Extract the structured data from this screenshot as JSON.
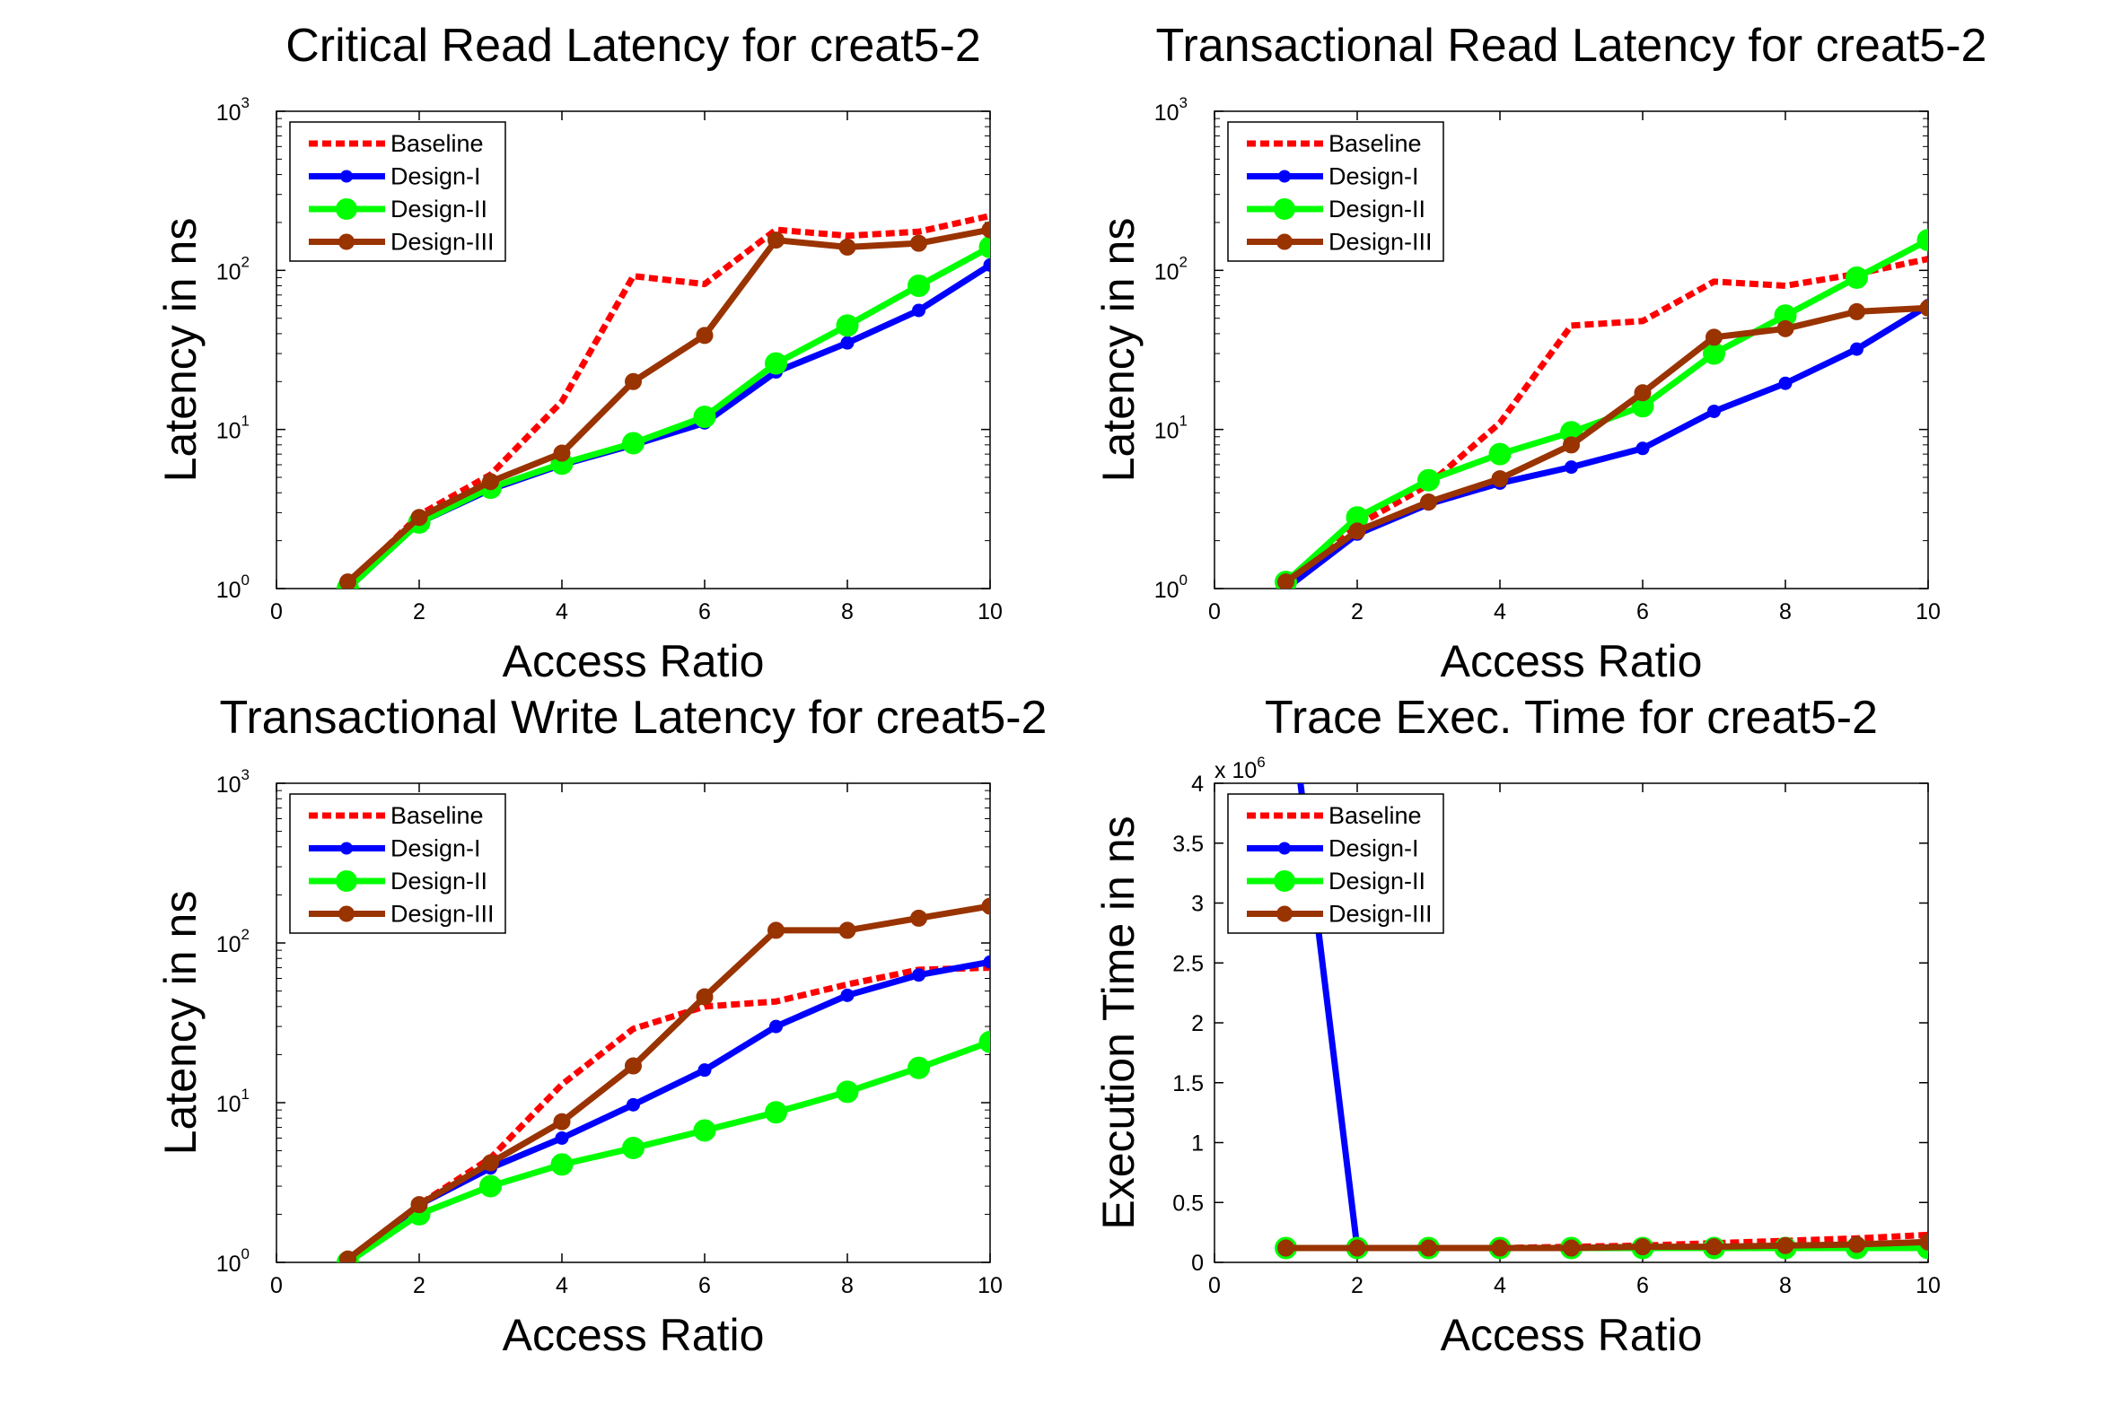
{
  "chart_data": [
    {
      "type": "line",
      "title": "Critical Read Latency for creat5-2",
      "xlabel": "Access Ratio",
      "ylabel": "Latency in ns",
      "yscale": "log",
      "xlim": [
        0,
        10
      ],
      "ylim": [
        1,
        1000
      ],
      "xticks": [
        "0",
        "2",
        "4",
        "6",
        "8",
        "10"
      ],
      "yticks": [
        {
          "base": "10",
          "exp": "0"
        },
        {
          "base": "10",
          "exp": "1"
        },
        {
          "base": "10",
          "exp": "2"
        },
        {
          "base": "10",
          "exp": "3"
        }
      ],
      "legend_position": "top-left",
      "x": [
        1,
        2,
        3,
        4,
        5,
        6,
        7,
        8,
        9,
        10
      ],
      "series": [
        {
          "name": "Baseline",
          "color": "#ff0000",
          "style": "dashed",
          "marker": "none",
          "values": [
            1.05,
            2.9,
            5.2,
            15,
            92,
            82,
            180,
            165,
            175,
            220
          ]
        },
        {
          "name": "Design-I",
          "color": "#0000ff",
          "style": "solid",
          "marker": "star",
          "values": [
            1.0,
            2.6,
            4.2,
            6.0,
            8.0,
            11,
            23,
            35,
            56,
            108
          ]
        },
        {
          "name": "Design-II",
          "color": "#00ff00",
          "style": "solid",
          "marker": "circle",
          "values": [
            1.0,
            2.6,
            4.3,
            6.1,
            8.2,
            12,
            26,
            45,
            80,
            140
          ]
        },
        {
          "name": "Design-III",
          "color": "#993300",
          "style": "solid",
          "marker": "hexagram",
          "values": [
            1.1,
            2.8,
            4.7,
            7.1,
            20,
            39,
            155,
            140,
            148,
            180
          ]
        }
      ]
    },
    {
      "type": "line",
      "title": "Transactional Read Latency for creat5-2",
      "xlabel": "Access Ratio",
      "ylabel": "Latency in ns",
      "yscale": "log",
      "xlim": [
        0,
        10
      ],
      "ylim": [
        1,
        1000
      ],
      "xticks": [
        "0",
        "2",
        "4",
        "6",
        "8",
        "10"
      ],
      "yticks": [
        {
          "base": "10",
          "exp": "0"
        },
        {
          "base": "10",
          "exp": "1"
        },
        {
          "base": "10",
          "exp": "2"
        },
        {
          "base": "10",
          "exp": "3"
        }
      ],
      "legend_position": "top-left",
      "x": [
        1,
        2,
        3,
        4,
        5,
        6,
        7,
        8,
        9,
        10
      ],
      "series": [
        {
          "name": "Baseline",
          "color": "#ff0000",
          "style": "dashed",
          "marker": "none",
          "values": [
            1.05,
            2.5,
            4.5,
            11,
            45,
            48,
            85,
            80,
            95,
            118
          ]
        },
        {
          "name": "Design-I",
          "color": "#0000ff",
          "style": "solid",
          "marker": "star",
          "values": [
            1.0,
            2.2,
            3.4,
            4.6,
            5.8,
            7.6,
            13,
            19.5,
            32,
            60
          ]
        },
        {
          "name": "Design-II",
          "color": "#00ff00",
          "style": "solid",
          "marker": "circle",
          "values": [
            1.1,
            2.8,
            4.8,
            7,
            9.6,
            14,
            30,
            52,
            90,
            155
          ]
        },
        {
          "name": "Design-III",
          "color": "#993300",
          "style": "solid",
          "marker": "hexagram",
          "values": [
            1.1,
            2.3,
            3.5,
            4.9,
            8,
            17,
            38,
            43,
            55,
            58
          ]
        }
      ]
    },
    {
      "type": "line",
      "title": "Transactional Write Latency for creat5-2",
      "xlabel": "Access Ratio",
      "ylabel": "Latency in ns",
      "yscale": "log",
      "xlim": [
        0,
        10
      ],
      "ylim": [
        1,
        1000
      ],
      "xticks": [
        "0",
        "2",
        "4",
        "6",
        "8",
        "10"
      ],
      "yticks": [
        {
          "base": "10",
          "exp": "0"
        },
        {
          "base": "10",
          "exp": "1"
        },
        {
          "base": "10",
          "exp": "2"
        },
        {
          "base": "10",
          "exp": "3"
        }
      ],
      "legend_position": "top-left",
      "x": [
        1,
        2,
        3,
        4,
        5,
        6,
        7,
        8,
        9,
        10
      ],
      "series": [
        {
          "name": "Baseline",
          "color": "#ff0000",
          "style": "dashed",
          "marker": "none",
          "values": [
            1.0,
            2.3,
            4.5,
            13,
            29,
            40,
            43,
            55,
            68,
            70
          ]
        },
        {
          "name": "Design-I",
          "color": "#0000ff",
          "style": "solid",
          "marker": "star",
          "values": [
            1.0,
            2.3,
            3.9,
            6.0,
            9.7,
            16,
            30,
            47,
            63,
            76
          ]
        },
        {
          "name": "Design-II",
          "color": "#00ff00",
          "style": "solid",
          "marker": "circle",
          "values": [
            1.0,
            2.0,
            3.0,
            4.1,
            5.2,
            6.7,
            8.7,
            11.7,
            16.5,
            24
          ]
        },
        {
          "name": "Design-III",
          "color": "#993300",
          "style": "solid",
          "marker": "hexagram",
          "values": [
            1.05,
            2.3,
            4.2,
            7.6,
            17,
            46,
            120,
            120,
            143,
            170
          ]
        }
      ]
    },
    {
      "type": "line",
      "title": "Trace Exec. Time for creat5-2",
      "xlabel": "Access Ratio",
      "ylabel": "Execution Time in ns",
      "yscale": "linear",
      "y_multiplier": {
        "base": "x 10",
        "exp": "6"
      },
      "xlim": [
        0,
        10
      ],
      "ylim": [
        0,
        4
      ],
      "xticks": [
        "0",
        "2",
        "4",
        "6",
        "8",
        "10"
      ],
      "yticks": [
        "0",
        "0.5",
        "1",
        "1.5",
        "2",
        "2.5",
        "3",
        "3.5",
        "4"
      ],
      "legend_position": "top-left",
      "x": [
        1,
        2,
        3,
        4,
        5,
        6,
        7,
        8,
        9,
        10
      ],
      "series": [
        {
          "name": "Baseline",
          "color": "#ff0000",
          "style": "dashed",
          "marker": "none",
          "values": [
            0.12,
            0.12,
            0.12,
            0.12,
            0.13,
            0.14,
            0.16,
            0.18,
            0.2,
            0.23
          ]
        },
        {
          "name": "Design-I",
          "color": "#0000ff",
          "style": "solid",
          "marker": "star",
          "values": [
            5.0,
            0.12,
            0.12,
            0.12,
            0.12,
            0.12,
            0.12,
            0.13,
            0.14,
            0.15
          ]
        },
        {
          "name": "Design-II",
          "color": "#00ff00",
          "style": "solid",
          "marker": "circle",
          "values": [
            0.12,
            0.12,
            0.12,
            0.12,
            0.12,
            0.12,
            0.12,
            0.12,
            0.12,
            0.12
          ]
        },
        {
          "name": "Design-III",
          "color": "#993300",
          "style": "solid",
          "marker": "hexagram",
          "values": [
            0.12,
            0.12,
            0.12,
            0.12,
            0.12,
            0.13,
            0.13,
            0.14,
            0.15,
            0.17
          ]
        }
      ]
    }
  ]
}
